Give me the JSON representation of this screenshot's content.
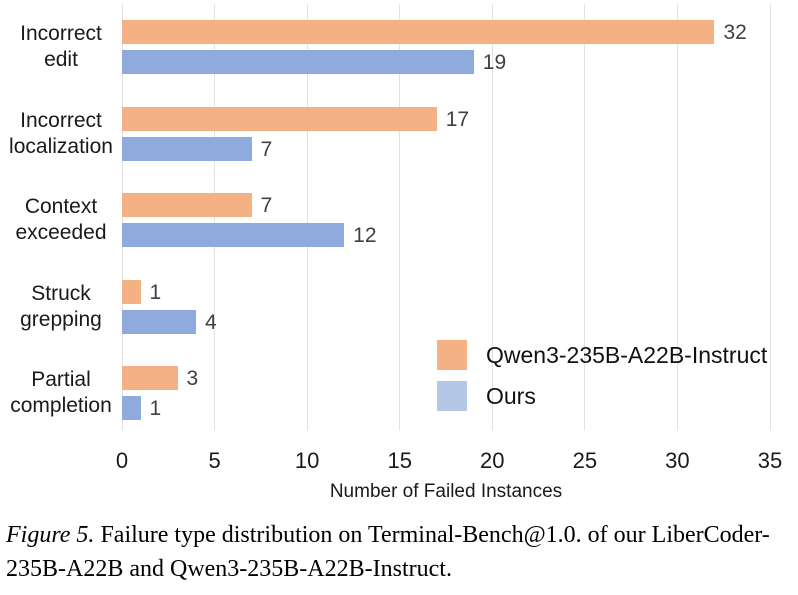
{
  "chart_data": {
    "type": "bar",
    "orientation": "horizontal",
    "title": "",
    "xlabel": "Number of Failed Instances",
    "ylabel": "",
    "categories": [
      "Incorrect edit",
      "Incorrect localization",
      "Context exceeded",
      "Struck grepping",
      "Partial completion"
    ],
    "series": [
      {
        "name": "Qwen3-235B-A22B-Instruct",
        "values": [
          32,
          17,
          7,
          1,
          3
        ],
        "bar_color": "#f4b183",
        "legend_color": "#f4b183"
      },
      {
        "name": "Ours",
        "values": [
          19,
          7,
          12,
          4,
          1
        ],
        "bar_color": "#8faadc",
        "legend_color": "#b4c7e7"
      }
    ],
    "xlim": [
      0,
      35
    ],
    "xticks": [
      0,
      5,
      10,
      15,
      20,
      25,
      30,
      35
    ],
    "grid": true,
    "gridline_color": "#e2e2e2",
    "data_label_color": "#404040",
    "legend_position": "inside lower right",
    "data_labels_shown": true
  },
  "caption": {
    "label": "Figure 5.",
    "text": "Failure type distribution on Terminal-Bench@1.0. of our LiberCoder-235B-A22B and Qwen3-235B-A22B-Instruct."
  }
}
